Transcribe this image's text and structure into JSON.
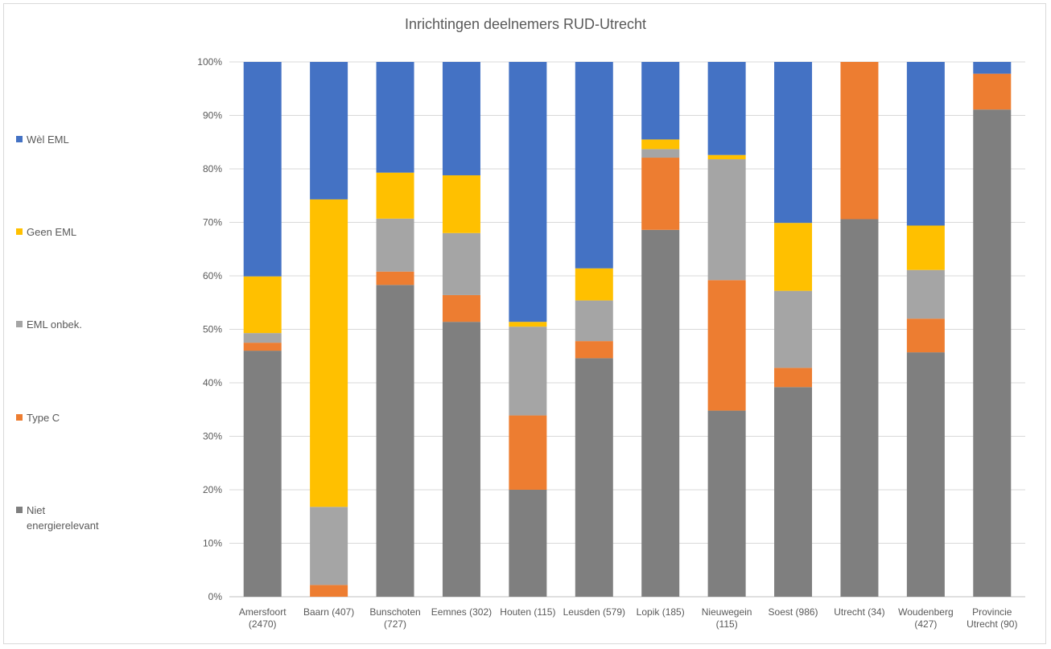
{
  "chart_data": {
    "type": "bar",
    "stacked": "percent",
    "title": "Inrichtingen deelnemers RUD-Utrecht",
    "categories": [
      [
        "Amersfoort",
        "(2470)"
      ],
      [
        "Baarn (407)"
      ],
      [
        "Bunschoten",
        "(727)"
      ],
      [
        "Eemnes (302)"
      ],
      [
        "Houten (115)"
      ],
      [
        "Leusden (579)"
      ],
      [
        "Lopik (185)"
      ],
      [
        "Nieuwegein",
        "(115)"
      ],
      [
        "Soest (986)"
      ],
      [
        "Utrecht (34)"
      ],
      [
        "Woudenberg",
        "(427)"
      ],
      [
        "Provincie",
        "Utrecht (90)"
      ]
    ],
    "series": [
      {
        "name": "Niet energierelevant",
        "color": "#7f7f7f",
        "values": [
          46.0,
          0.0,
          58.3,
          51.4,
          20.0,
          44.6,
          68.6,
          34.8,
          39.2,
          70.6,
          45.7,
          91.1
        ]
      },
      {
        "name": "Type C",
        "color": "#ed7d31",
        "values": [
          1.5,
          2.2,
          2.5,
          5.0,
          13.9,
          3.2,
          13.5,
          24.4,
          3.6,
          29.4,
          6.3,
          6.7
        ]
      },
      {
        "name": "EML onbek.",
        "color": "#a5a5a5",
        "values": [
          1.8,
          14.6,
          9.9,
          11.6,
          16.6,
          7.6,
          1.6,
          22.6,
          14.4,
          0.0,
          9.1,
          0.0
        ]
      },
      {
        "name": "Geen EML",
        "color": "#ffc000",
        "values": [
          10.6,
          57.5,
          8.6,
          10.8,
          0.9,
          6.0,
          1.8,
          0.8,
          12.7,
          0.0,
          8.3,
          0.0
        ]
      },
      {
        "name": "Wèl EML",
        "color": "#4472c4",
        "values": [
          40.1,
          25.7,
          20.7,
          21.2,
          48.6,
          38.6,
          14.5,
          17.4,
          30.1,
          0.0,
          30.6,
          2.2
        ]
      }
    ],
    "y_ticks": [
      "0%",
      "10%",
      "20%",
      "30%",
      "40%",
      "50%",
      "60%",
      "70%",
      "80%",
      "90%",
      "100%"
    ],
    "ylim": [
      0,
      100
    ],
    "grid": true,
    "legend_position": "left",
    "legend": [
      {
        "lines": [
          "Wèl EML"
        ],
        "color": "#4472c4"
      },
      {
        "lines": [
          "Geen EML"
        ],
        "color": "#ffc000"
      },
      {
        "lines": [
          "EML onbek."
        ],
        "color": "#a5a5a5"
      },
      {
        "lines": [
          "Type C"
        ],
        "color": "#ed7d31"
      },
      {
        "lines": [
          "Niet",
          "energierelevant"
        ],
        "color": "#7f7f7f"
      }
    ]
  }
}
